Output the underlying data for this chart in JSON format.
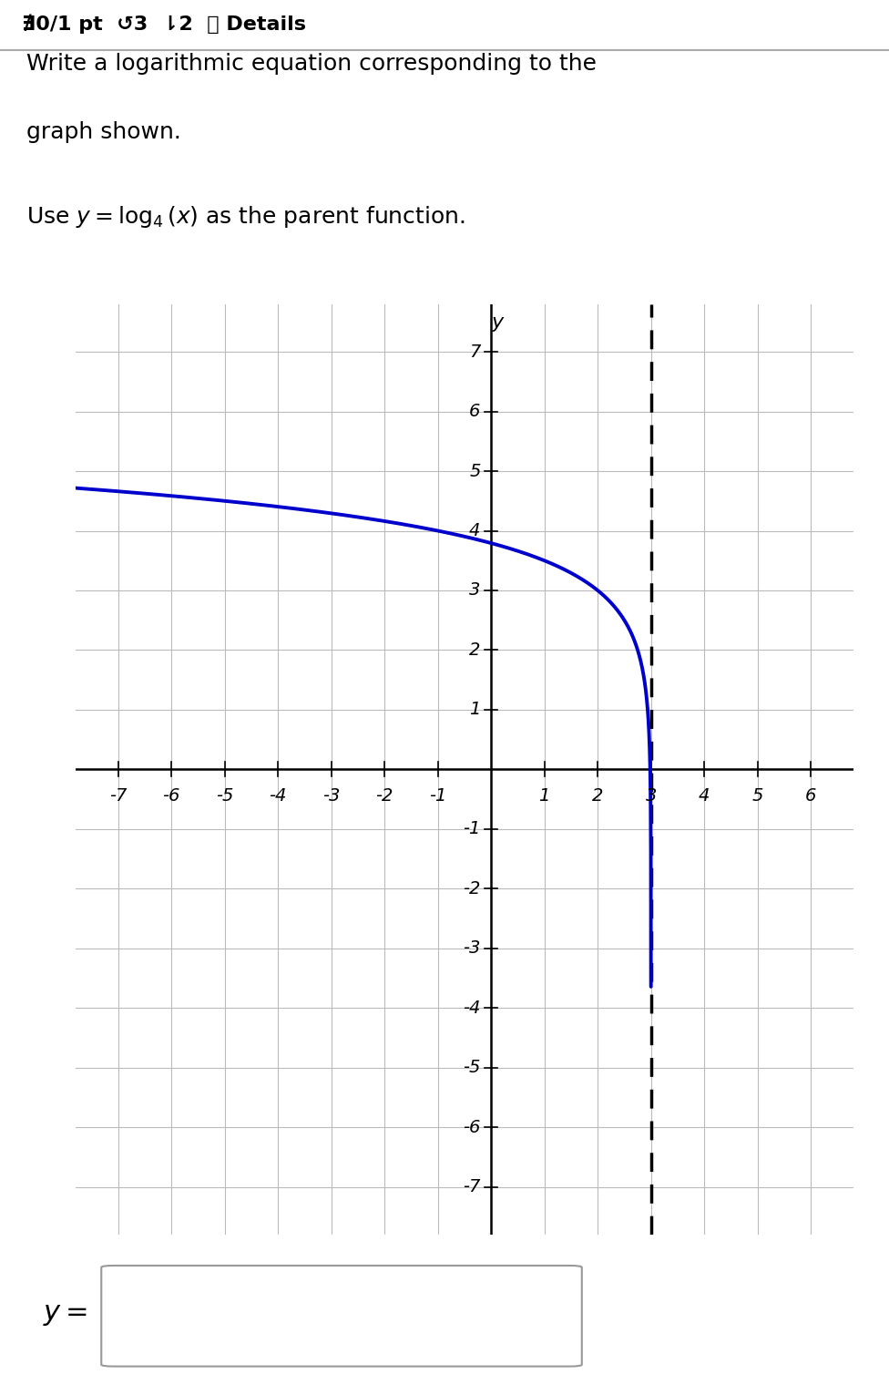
{
  "header_text": "∄0/1 pt  ↺3  ⇂2  ⓘ Details",
  "title_line1": "Write a logarithmic equation corresponding to the",
  "title_line2": "graph shown.",
  "subtitle_math": "Use $y = \\log_4(x)$ as the parent function.",
  "xlim": [
    -7.8,
    6.8
  ],
  "ylim": [
    -7.8,
    7.8
  ],
  "xtick_vals": [
    -7,
    -6,
    -5,
    -4,
    -3,
    -2,
    -1,
    1,
    2,
    3,
    4,
    5,
    6
  ],
  "ytick_vals": [
    -7,
    -6,
    -5,
    -4,
    -3,
    -2,
    -1,
    1,
    2,
    3,
    4,
    5,
    6,
    7
  ],
  "asymptote_x": 3,
  "vertical_shift": 3,
  "curve_color": "#0000CC",
  "curve_linewidth": 2.8,
  "asymptote_linestyle": "--",
  "asymptote_linewidth": 2.5,
  "asymptote_color": "#000000",
  "grid_color": "#BBBBBB",
  "grid_linewidth": 0.8,
  "axis_linewidth": 1.8,
  "bg_color": "#FFFFFF",
  "tick_fontsize": 14,
  "ylabel": "y",
  "separator_color": "#AAAAAA"
}
